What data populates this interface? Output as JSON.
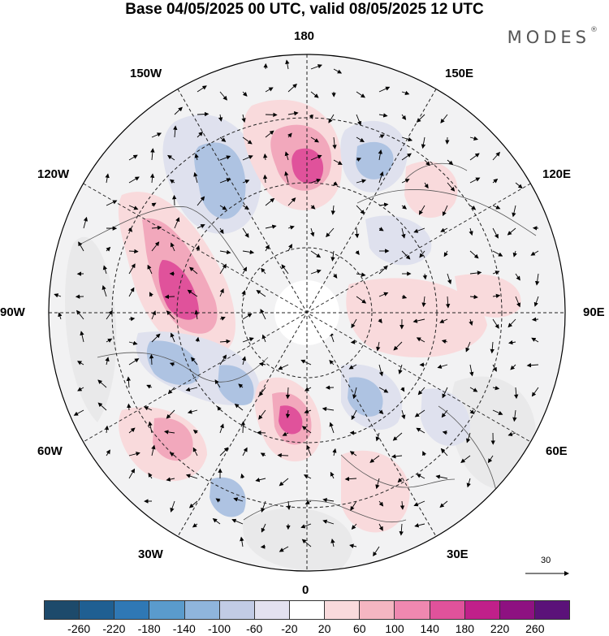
{
  "title": "Base 04/05/2025 00 UTC, valid 08/05/2025 12 UTC",
  "brand": "MODES",
  "brand_mark": "®",
  "longitude_labels": {
    "top": "180",
    "bottom": "0",
    "left": "90W",
    "right": "90E",
    "upper_left_1": "150W",
    "upper_left_2": "120W",
    "lower_left_1": "60W",
    "lower_left_2": "30W",
    "upper_right_1": "150E",
    "upper_right_2": "120E",
    "lower_right_1": "60E",
    "lower_right_2": "30E"
  },
  "reference_vector_label": "30",
  "colorbar": {
    "colors": [
      "#1d4a6b",
      "#1f5f92",
      "#2f78b5",
      "#5a9bcc",
      "#8fb5dc",
      "#c2cbe5",
      "#e3e1ef",
      "#ffffff",
      "#f9dadc",
      "#f5b6c2",
      "#ef88b0",
      "#e0529b",
      "#c0208a",
      "#8e1181",
      "#5b1279"
    ],
    "tick_labels": [
      "-260",
      "-220",
      "-180",
      "-140",
      "-100",
      "-60",
      "-20",
      "20",
      "60",
      "100",
      "140",
      "180",
      "220",
      "260"
    ]
  },
  "field_colors": {
    "neg_weak": "#dfe1ee",
    "neg_mid": "#aec3e2",
    "neg_strong": "#4f8cc6",
    "pos_weak": "#f9dadc",
    "pos_mid": "#f2a8bc",
    "pos_strong": "#e0529b",
    "neutral": "#e9e9ea",
    "coast": "#555555",
    "grid": "#222222"
  }
}
